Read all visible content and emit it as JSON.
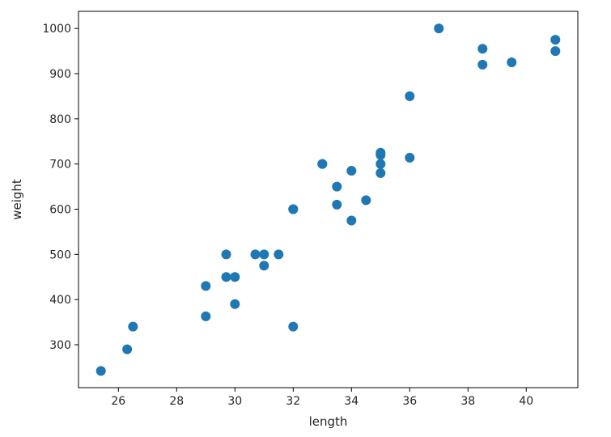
{
  "chart_data": {
    "type": "scatter",
    "title": "",
    "xlabel": "length",
    "ylabel": "weight",
    "xlim": [
      24.63,
      41.77
    ],
    "ylim": [
      205.1,
      1037.9
    ],
    "xticks": [
      26,
      28,
      30,
      32,
      34,
      36,
      38,
      40
    ],
    "yticks": [
      300,
      400,
      500,
      600,
      700,
      800,
      900,
      1000
    ],
    "grid": false,
    "legend": "none",
    "marker_color": "#1f77b4",
    "points": [
      [
        25.4,
        242
      ],
      [
        26.3,
        290
      ],
      [
        26.5,
        340
      ],
      [
        29.0,
        363
      ],
      [
        29.0,
        430
      ],
      [
        29.7,
        450
      ],
      [
        29.7,
        500
      ],
      [
        30.0,
        390
      ],
      [
        30.0,
        450
      ],
      [
        30.7,
        500
      ],
      [
        31.0,
        475
      ],
      [
        31.0,
        500
      ],
      [
        31.5,
        500
      ],
      [
        32.0,
        340
      ],
      [
        32.0,
        600
      ],
      [
        32.0,
        600
      ],
      [
        33.0,
        700
      ],
      [
        33.0,
        700
      ],
      [
        33.5,
        610
      ],
      [
        33.5,
        650
      ],
      [
        34.0,
        575
      ],
      [
        34.0,
        685
      ],
      [
        34.5,
        620
      ],
      [
        35.0,
        680
      ],
      [
        35.0,
        700
      ],
      [
        35.0,
        725
      ],
      [
        35.0,
        720
      ],
      [
        36.0,
        714
      ],
      [
        36.0,
        850
      ],
      [
        37.0,
        1000
      ],
      [
        38.5,
        920
      ],
      [
        38.5,
        955
      ],
      [
        39.5,
        925
      ],
      [
        41.0,
        975
      ],
      [
        41.0,
        950
      ]
    ]
  }
}
